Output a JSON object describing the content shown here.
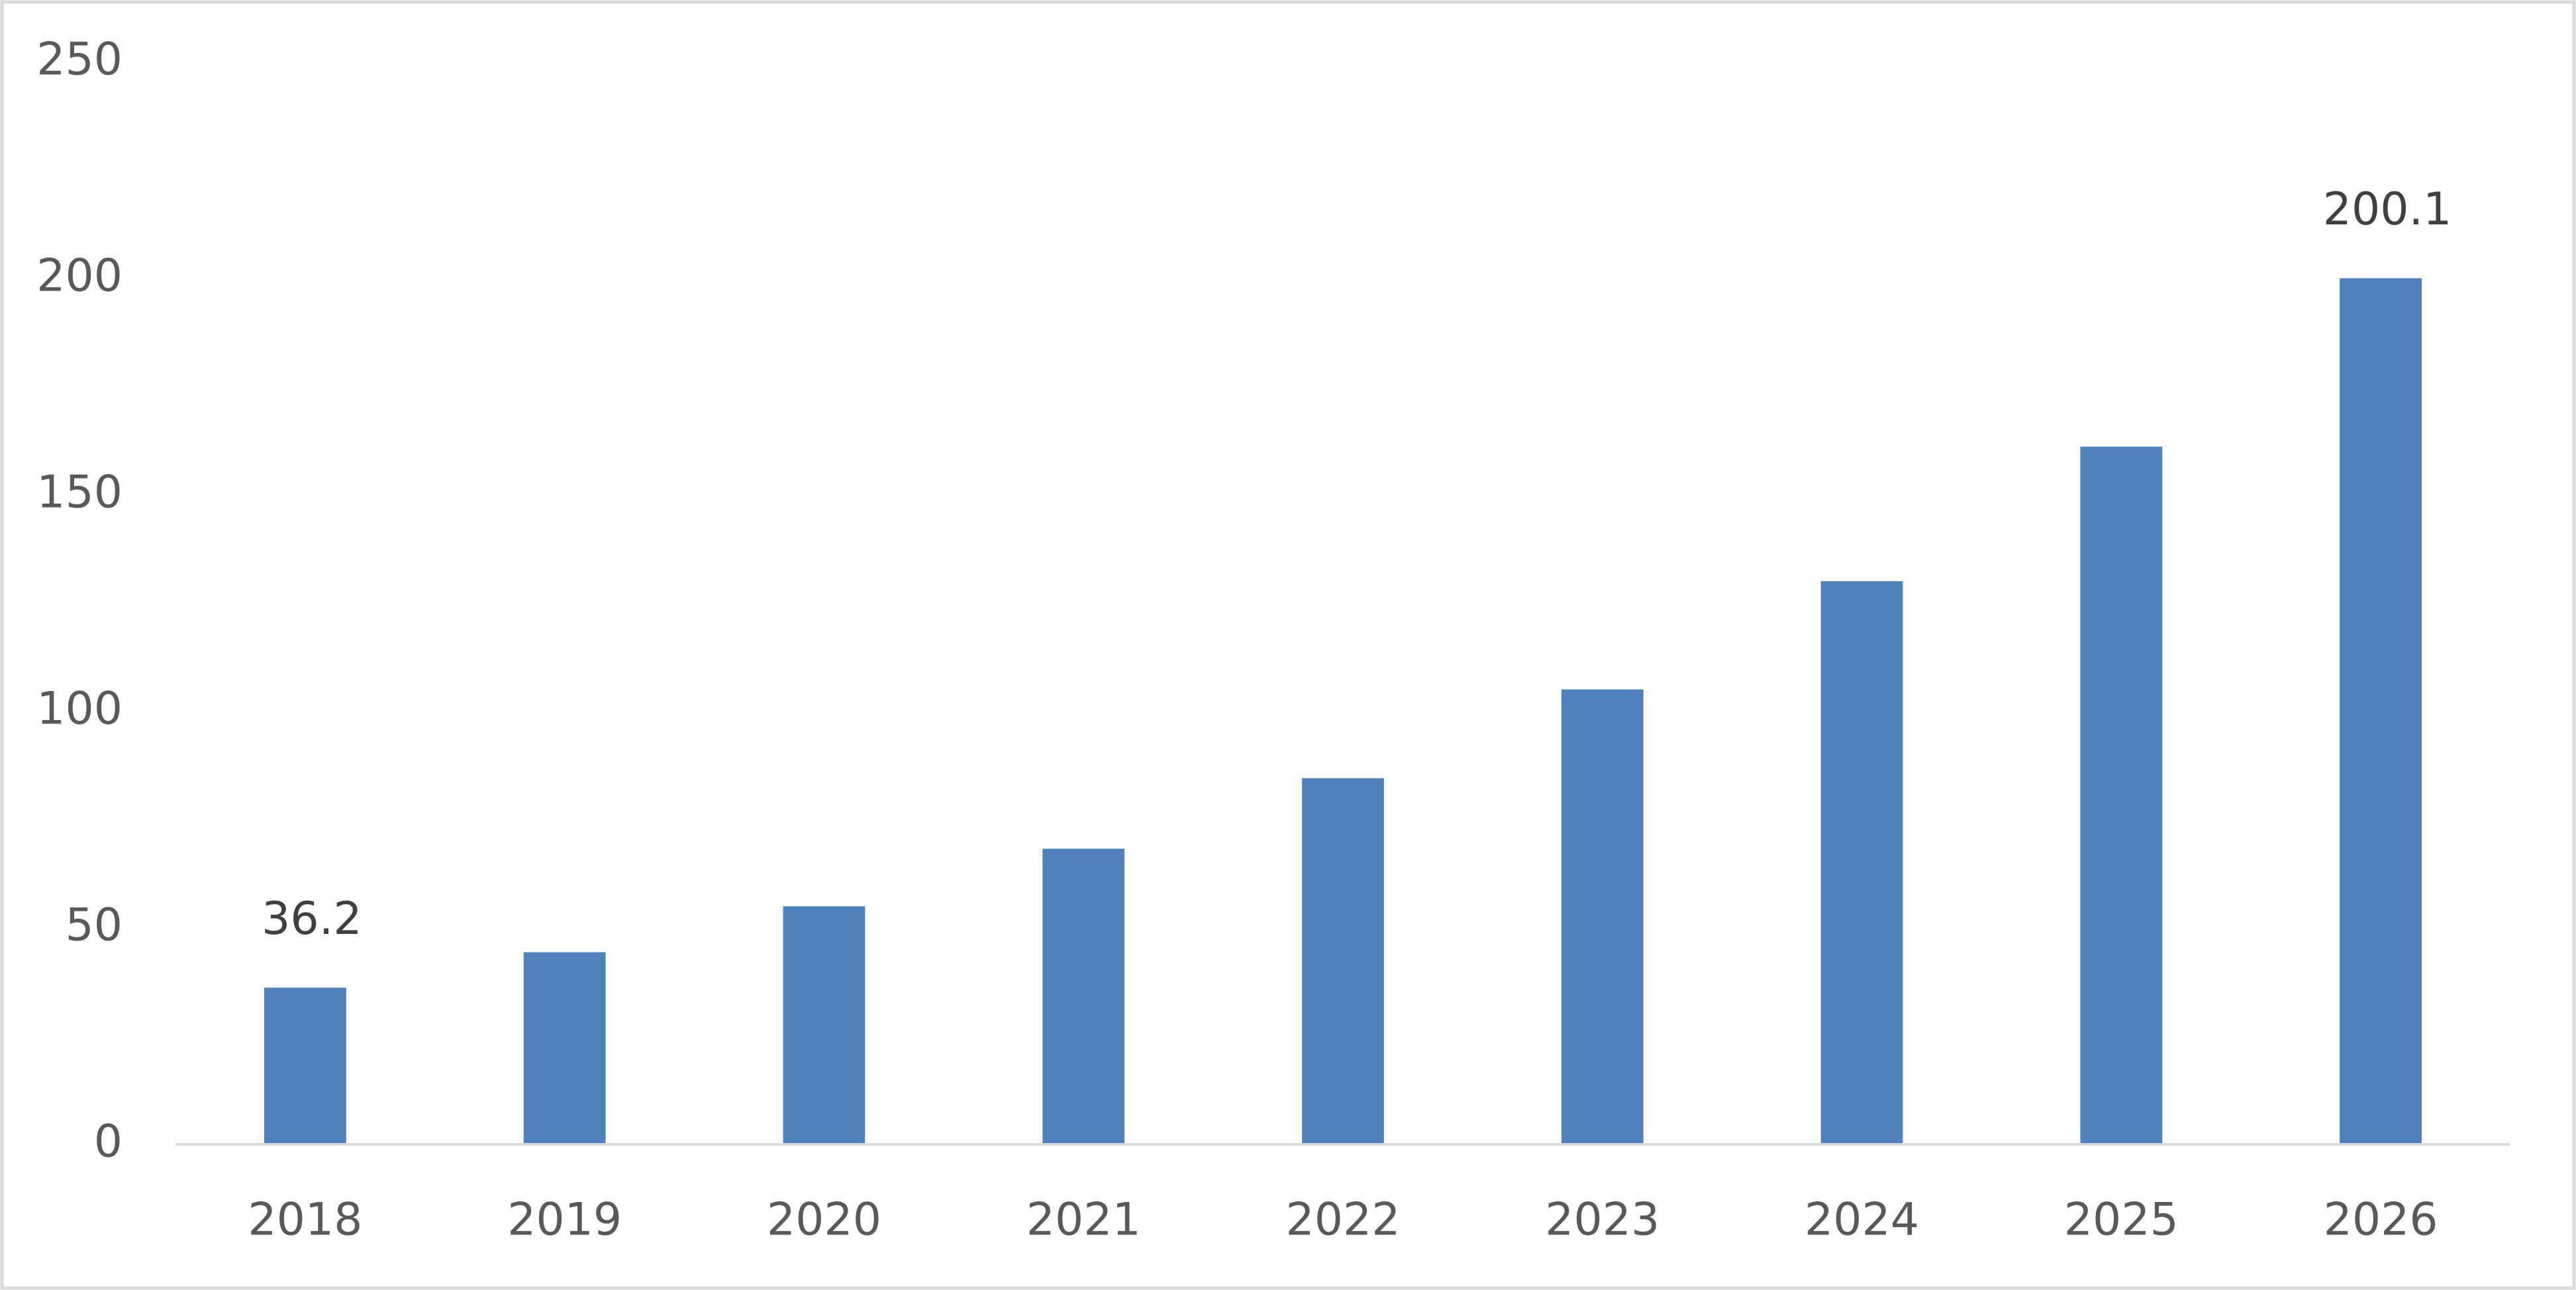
{
  "chart_data": {
    "type": "bar",
    "categories": [
      "2018",
      "2019",
      "2020",
      "2021",
      "2022",
      "2023",
      "2024",
      "2025",
      "2026"
    ],
    "values": [
      36.2,
      44.4,
      55.0,
      68.3,
      84.6,
      105.1,
      130.1,
      161.2,
      200.1
    ],
    "value_labels": [
      "36.2",
      null,
      null,
      null,
      null,
      null,
      null,
      null,
      "200.1"
    ],
    "color": "#4f81bd",
    "ylim": [
      0,
      250
    ],
    "yticks": [
      0,
      50,
      100,
      150,
      200,
      250
    ],
    "grid": false
  }
}
